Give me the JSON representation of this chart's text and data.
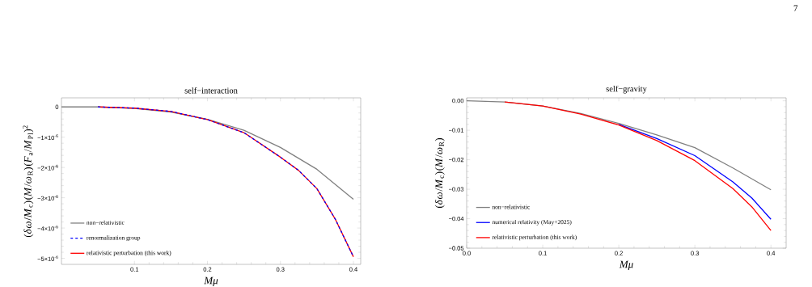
{
  "chart_data": [
    {
      "type": "line",
      "title": "self−interaction",
      "xlabel": "Mμ",
      "ylabel": "(*δω*/*M*$_{c}$)(*M*/*ω*$_{R}$)(*F*$_{a}$/*M*$_{Pl}$)$^{2}$",
      "xlim": [
        0,
        0.41
      ],
      "ylim": [
        -5.2e-06,
        3e-07
      ],
      "xticks": [
        0.1,
        0.2,
        0.3,
        0.4
      ],
      "yticks": [
        0,
        {
          "value": -1e-06,
          "label": "−1×10$^{-6}$"
        },
        {
          "value": -2e-06,
          "label": "−2×10$^{-6}$"
        },
        {
          "value": -3e-06,
          "label": "−3×10$^{-6}$"
        },
        {
          "value": -4e-06,
          "label": "−4×10$^{-6}$"
        },
        {
          "value": -5e-06,
          "label": "−5×10$^{-6}$"
        }
      ],
      "legend": "bottom left",
      "marker": "none",
      "series": [
        {
          "name": "non−relativistic",
          "color": "#808080",
          "line_style": "solid",
          "x": [
            0.0,
            0.05,
            0.1,
            0.15,
            0.2,
            0.25,
            0.3,
            0.35,
            0.4
          ],
          "values": [
            0,
            0,
            -5e-08,
            -1.7e-07,
            -4.1e-07,
            -7.7e-07,
            -1.34e-06,
            -2.06e-06,
            -3.05e-06
          ]
        },
        {
          "name": "renormalization group",
          "color": "#0000ff",
          "line_style": "dashed",
          "x": [
            0.05,
            0.1,
            0.15,
            0.2,
            0.25,
            0.3,
            0.325,
            0.35,
            0.375,
            0.4
          ],
          "values": [
            0,
            -4e-08,
            -1.5e-07,
            -4.2e-07,
            -8.5e-07,
            -1.66e-06,
            -2.1e-06,
            -2.7e-06,
            -3.7e-06,
            -4.95e-06
          ]
        },
        {
          "name": "relativistic perturbation (this work)",
          "color": "#ff0000",
          "line_style": "solid",
          "x": [
            0.05,
            0.1,
            0.15,
            0.2,
            0.25,
            0.3,
            0.325,
            0.35,
            0.375,
            0.4
          ],
          "values": [
            0,
            -4e-08,
            -1.5e-07,
            -4.2e-07,
            -8.5e-07,
            -1.66e-06,
            -2.1e-06,
            -2.7e-06,
            -3.7e-06,
            -4.95e-06
          ]
        }
      ]
    },
    {
      "type": "line",
      "title": "self−gravity",
      "xlabel": "Mμ",
      "ylabel": "(*δω*/*M*$_{c}$)(*M*/*ω*$_{R}$)",
      "xlim": [
        0,
        0.42
      ],
      "ylim": [
        -0.05,
        0.001
      ],
      "xticks": [
        {
          "value": 0,
          "label": "0.0"
        },
        0.1,
        0.2,
        0.3,
        0.4
      ],
      "yticks": [
        {
          "value": 0,
          "label": "0.00"
        },
        {
          "value": -0.01,
          "label": "−0.01"
        },
        {
          "value": -0.02,
          "label": "−0.02"
        },
        {
          "value": -0.03,
          "label": "−0.03"
        },
        {
          "value": -0.04,
          "label": "−0.04"
        },
        {
          "value": -0.05,
          "label": "−0.05"
        }
      ],
      "legend": "bottom left",
      "marker": "none",
      "annotations": [
        "7"
      ],
      "series": [
        {
          "name": "non−relativistic",
          "color": "#808080",
          "line_style": "solid",
          "x": [
            0.0,
            0.05,
            0.1,
            0.15,
            0.2,
            0.25,
            0.3,
            0.35,
            0.4
          ],
          "values": [
            0,
            -0.0004,
            -0.0018,
            -0.0043,
            -0.0077,
            -0.0116,
            -0.0159,
            -0.0228,
            -0.0302
          ]
        },
        {
          "name": "numerical relativity (May+2025)",
          "color": "#0000ff",
          "line_style": "solid",
          "x": [
            0.2,
            0.25,
            0.3,
            0.35,
            0.375,
            0.4
          ],
          "values": [
            -0.008,
            -0.0128,
            -0.0186,
            -0.0275,
            -0.033,
            -0.0402
          ]
        },
        {
          "name": "relativistic perturbation (this work)",
          "color": "#ff0000",
          "line_style": "solid",
          "x": [
            0.05,
            0.1,
            0.15,
            0.2,
            0.25,
            0.3,
            0.35,
            0.375,
            0.4
          ],
          "values": [
            -0.0004,
            -0.0018,
            -0.0045,
            -0.0082,
            -0.0135,
            -0.0203,
            -0.0298,
            -0.036,
            -0.044
          ]
        }
      ]
    }
  ]
}
